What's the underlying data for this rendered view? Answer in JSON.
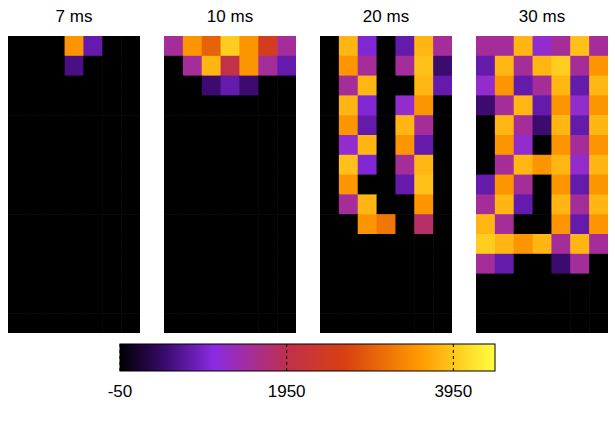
{
  "chart_data": {
    "type": "heatmap",
    "tick_labels": false,
    "panels": [
      {
        "title": "7 ms",
        "cells": [
          [
            -50,
            -50,
            -50,
            3500,
            800,
            -50,
            -50
          ],
          [
            -50,
            -50,
            -50,
            600,
            -50,
            -50,
            -50
          ],
          [
            -50,
            -50,
            -50,
            -50,
            -50,
            -50,
            -50
          ],
          [
            -50,
            -50,
            -50,
            -50,
            -50,
            -50,
            -50
          ],
          [
            -50,
            -50,
            -50,
            -50,
            -50,
            -50,
            -50
          ],
          [
            -50,
            -50,
            -50,
            -50,
            -50,
            -50,
            -50
          ],
          [
            -50,
            -50,
            -50,
            -50,
            -50,
            -50,
            -50
          ],
          [
            -50,
            -50,
            -50,
            -50,
            -50,
            -50,
            -50
          ],
          [
            -50,
            -50,
            -50,
            -50,
            -50,
            -50,
            -50
          ],
          [
            -50,
            -50,
            -50,
            -50,
            -50,
            -50,
            -50
          ],
          [
            -50,
            -50,
            -50,
            -50,
            -50,
            -50,
            -50
          ],
          [
            -50,
            -50,
            -50,
            -50,
            -50,
            -50,
            -50
          ],
          [
            -50,
            -50,
            -50,
            -50,
            -50,
            -50,
            -50
          ],
          [
            -50,
            -50,
            -50,
            -50,
            -50,
            -50,
            -50
          ],
          [
            -50,
            -50,
            -50,
            -50,
            -50,
            -50,
            -50
          ]
        ]
      },
      {
        "title": "10 ms",
        "cells": [
          [
            1500,
            3500,
            3000,
            4000,
            3500,
            2500,
            1500
          ],
          [
            -50,
            1500,
            3800,
            2000,
            3500,
            1500,
            800
          ],
          [
            -50,
            -50,
            500,
            800,
            500,
            -50,
            -50
          ],
          [
            -50,
            -50,
            -50,
            -50,
            -50,
            -50,
            -50
          ],
          [
            -50,
            -50,
            -50,
            -50,
            -50,
            -50,
            -50
          ],
          [
            -50,
            -50,
            -50,
            -50,
            -50,
            -50,
            -50
          ],
          [
            -50,
            -50,
            -50,
            -50,
            -50,
            -50,
            -50
          ],
          [
            -50,
            -50,
            -50,
            -50,
            -50,
            -50,
            -50
          ],
          [
            -50,
            -50,
            -50,
            -50,
            -50,
            -50,
            -50
          ],
          [
            -50,
            -50,
            -50,
            -50,
            -50,
            -50,
            -50
          ],
          [
            -50,
            -50,
            -50,
            -50,
            -50,
            -50,
            -50
          ],
          [
            -50,
            -50,
            -50,
            -50,
            -50,
            -50,
            -50
          ],
          [
            -50,
            -50,
            -50,
            -50,
            -50,
            -50,
            -50
          ],
          [
            -50,
            -50,
            -50,
            -50,
            -50,
            -50,
            -50
          ],
          [
            -50,
            -50,
            -50,
            -50,
            -50,
            -50,
            -50
          ]
        ]
      },
      {
        "title": "20 ms",
        "cells": [
          [
            -50,
            3800,
            1000,
            -50,
            800,
            3800,
            1500
          ],
          [
            -50,
            3500,
            1500,
            -50,
            1500,
            3900,
            500
          ],
          [
            -50,
            1500,
            3800,
            -50,
            -50,
            3800,
            800
          ],
          [
            -50,
            3800,
            1000,
            -50,
            1200,
            3500,
            -50
          ],
          [
            -50,
            3500,
            800,
            -50,
            3800,
            1500,
            -50
          ],
          [
            -50,
            1200,
            3800,
            -50,
            3500,
            800,
            -50
          ],
          [
            -50,
            3900,
            1000,
            -50,
            1500,
            3800,
            -50
          ],
          [
            -50,
            3500,
            -50,
            -50,
            800,
            3900,
            -50
          ],
          [
            -50,
            1500,
            3800,
            -50,
            -50,
            3500,
            -50
          ],
          [
            -50,
            -50,
            3500,
            3200,
            -50,
            1800,
            -50
          ],
          [
            -50,
            -50,
            -50,
            -50,
            -50,
            -50,
            -50
          ],
          [
            -50,
            -50,
            -50,
            -50,
            -50,
            -50,
            -50
          ],
          [
            -50,
            -50,
            -50,
            -50,
            -50,
            -50,
            -50
          ],
          [
            -50,
            -50,
            -50,
            -50,
            -50,
            -50,
            -50
          ],
          [
            -50,
            -50,
            -50,
            -50,
            -50,
            -50,
            -50
          ]
        ]
      },
      {
        "title": "30 ms",
        "cells": [
          [
            1500,
            1500,
            3800,
            1200,
            1500,
            3900,
            1500
          ],
          [
            800,
            3800,
            1500,
            3800,
            4000,
            1500,
            3500
          ],
          [
            1200,
            3500,
            800,
            1500,
            3800,
            800,
            3800
          ],
          [
            500,
            1500,
            3800,
            800,
            3500,
            1200,
            3500
          ],
          [
            -50,
            3800,
            1500,
            500,
            3800,
            800,
            3800
          ],
          [
            -50,
            3500,
            1200,
            -50,
            3500,
            1500,
            3500
          ],
          [
            -50,
            1500,
            3800,
            3500,
            3800,
            1200,
            3800
          ],
          [
            800,
            3500,
            1500,
            -50,
            3500,
            800,
            3500
          ],
          [
            1500,
            3800,
            800,
            -50,
            3800,
            1500,
            3800
          ],
          [
            3800,
            1500,
            -50,
            -50,
            3500,
            800,
            3500
          ],
          [
            4000,
            3800,
            3500,
            3800,
            1500,
            3800,
            1500
          ],
          [
            1500,
            800,
            -50,
            -50,
            500,
            1500,
            -50
          ],
          [
            -50,
            -50,
            -50,
            -50,
            -50,
            -50,
            -50
          ],
          [
            -50,
            -50,
            -50,
            -50,
            -50,
            -50,
            -50
          ],
          [
            -50,
            -50,
            -50,
            -50,
            -50,
            -50,
            -50
          ]
        ]
      }
    ],
    "colorbar": {
      "range": [
        -50,
        4450
      ],
      "ticks": [
        -50,
        1950,
        3950
      ]
    }
  }
}
